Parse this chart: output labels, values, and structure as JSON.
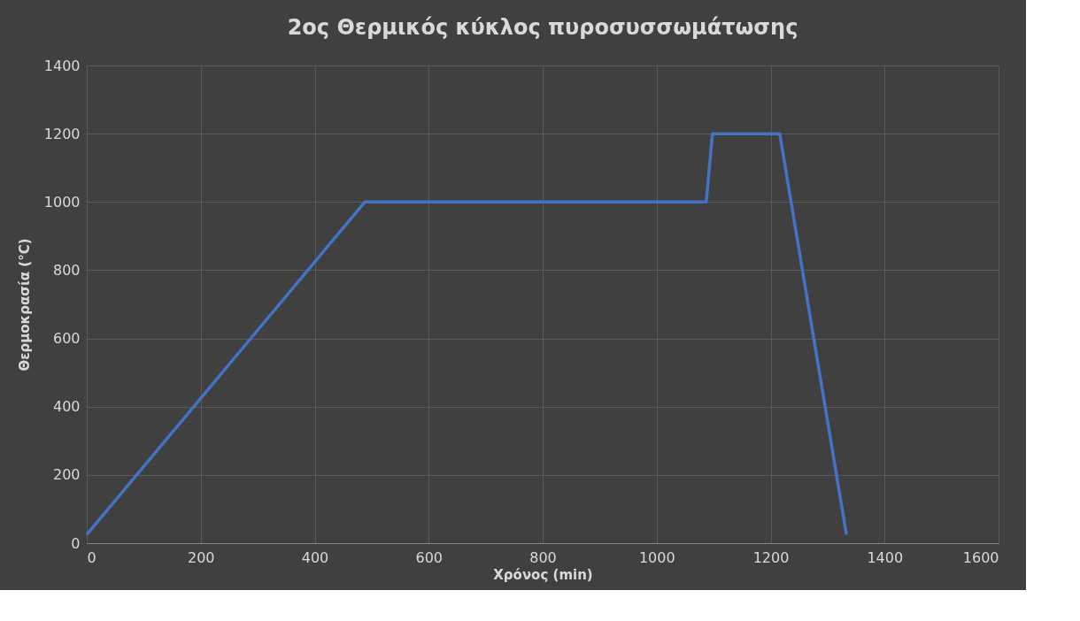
{
  "chart_data": {
    "type": "line",
    "title": "2ος Θερμικός κύκλος πυροσυσσωμάτωσης",
    "xlabel": "Χρόνος (min)",
    "ylabel": "Θερμοκρασία (°C)",
    "x": [
      0,
      488,
      1087,
      1098,
      1216,
      1333
    ],
    "series": [
      {
        "color": "#4472c4",
        "values": [
          25,
          1000,
          1000,
          1200,
          1200,
          25
        ]
      }
    ],
    "xlim": [
      0,
      1600
    ],
    "xticks": [
      0,
      200,
      400,
      600,
      800,
      1000,
      1200,
      1400,
      1600
    ],
    "ylim": [
      0,
      1400
    ],
    "yticks": [
      0,
      200,
      400,
      600,
      800,
      1000,
      1200,
      1400
    ],
    "grid": true,
    "marker": "none",
    "line_style": "solid"
  }
}
